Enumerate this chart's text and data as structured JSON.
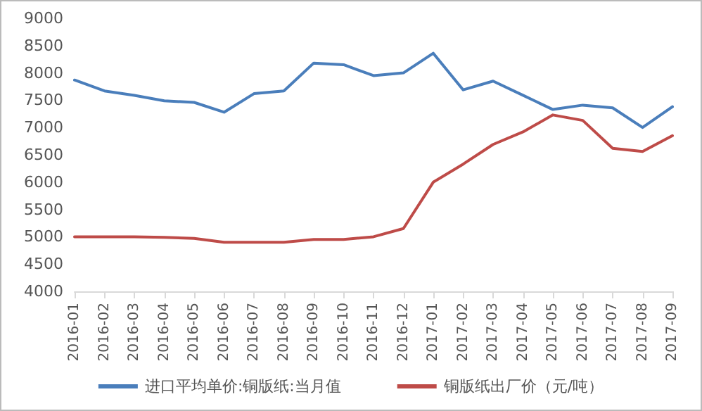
{
  "chart_data": {
    "type": "line",
    "categories": [
      "2016-01",
      "2016-02",
      "2016-03",
      "2016-04",
      "2016-05",
      "2016-06",
      "2016-07",
      "2016-08",
      "2016-09",
      "2016-10",
      "2016-11",
      "2016-12",
      "2017-01",
      "2017-02",
      "2017-03",
      "2017-04",
      "2017-05",
      "2017-06",
      "2017-07",
      "2017-08",
      "2017-09"
    ],
    "series": [
      {
        "name": "进口平均单价:铜版纸:当月值",
        "color": "#4a7ebb",
        "values": [
          7870,
          7670,
          7590,
          7490,
          7460,
          7280,
          7620,
          7670,
          8180,
          8150,
          7950,
          8000,
          8360,
          7690,
          7850,
          7590,
          7330,
          7410,
          7360,
          7000,
          7380
        ]
      },
      {
        "name": "铜版纸出厂价（元/吨）",
        "color": "#be4b48",
        "values": [
          5000,
          5000,
          5000,
          4990,
          4970,
          4900,
          4900,
          4900,
          4950,
          4950,
          5000,
          5150,
          6000,
          6330,
          6690,
          6920,
          7230,
          7130,
          6620,
          6560,
          6850
        ]
      }
    ],
    "ylim": [
      4000,
      9000
    ],
    "yticks": [
      4000,
      4500,
      5000,
      5500,
      6000,
      6500,
      7000,
      7500,
      8000,
      8500,
      9000
    ],
    "grid": false,
    "legend": "bottom",
    "marker": "none",
    "line_style": "solid"
  }
}
